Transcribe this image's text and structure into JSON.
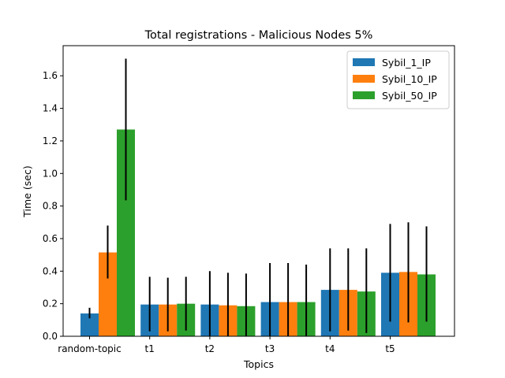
{
  "chart_data": {
    "type": "bar",
    "title": "Total registrations - Malicious Nodes 5%",
    "xlabel": "Topics",
    "ylabel": "Time (sec)",
    "ylim": [
      0,
      1.785
    ],
    "yticks": [
      "0.0",
      "0.2",
      "0.4",
      "0.6",
      "0.8",
      "1.0",
      "1.2",
      "1.4",
      "1.6"
    ],
    "categories": [
      "random-topic",
      "t1",
      "t2",
      "t3",
      "t4",
      "t5"
    ],
    "grid": false,
    "legend_position": "top-right",
    "series": [
      {
        "name": "Sybil_1_IP",
        "color": "#1f77b4",
        "values": [
          0.14,
          0.195,
          0.195,
          0.21,
          0.285,
          0.39
        ],
        "err_low": [
          0.11,
          0.03,
          0.0,
          0.0,
          0.03,
          0.09
        ],
        "err_high": [
          0.175,
          0.365,
          0.4,
          0.45,
          0.54,
          0.69
        ]
      },
      {
        "name": "Sybil_10_IP",
        "color": "#ff7f0e",
        "values": [
          0.515,
          0.195,
          0.19,
          0.21,
          0.285,
          0.395
        ],
        "err_low": [
          0.355,
          0.03,
          0.0,
          0.0,
          0.035,
          0.085
        ],
        "err_high": [
          0.68,
          0.36,
          0.39,
          0.45,
          0.54,
          0.7
        ]
      },
      {
        "name": "Sybil_50_IP",
        "color": "#2ca02c",
        "values": [
          1.27,
          0.2,
          0.185,
          0.21,
          0.275,
          0.38
        ],
        "err_low": [
          0.835,
          0.035,
          0.0,
          0.0,
          0.02,
          0.09
        ],
        "err_high": [
          1.705,
          0.365,
          0.385,
          0.44,
          0.54,
          0.675
        ]
      }
    ]
  }
}
